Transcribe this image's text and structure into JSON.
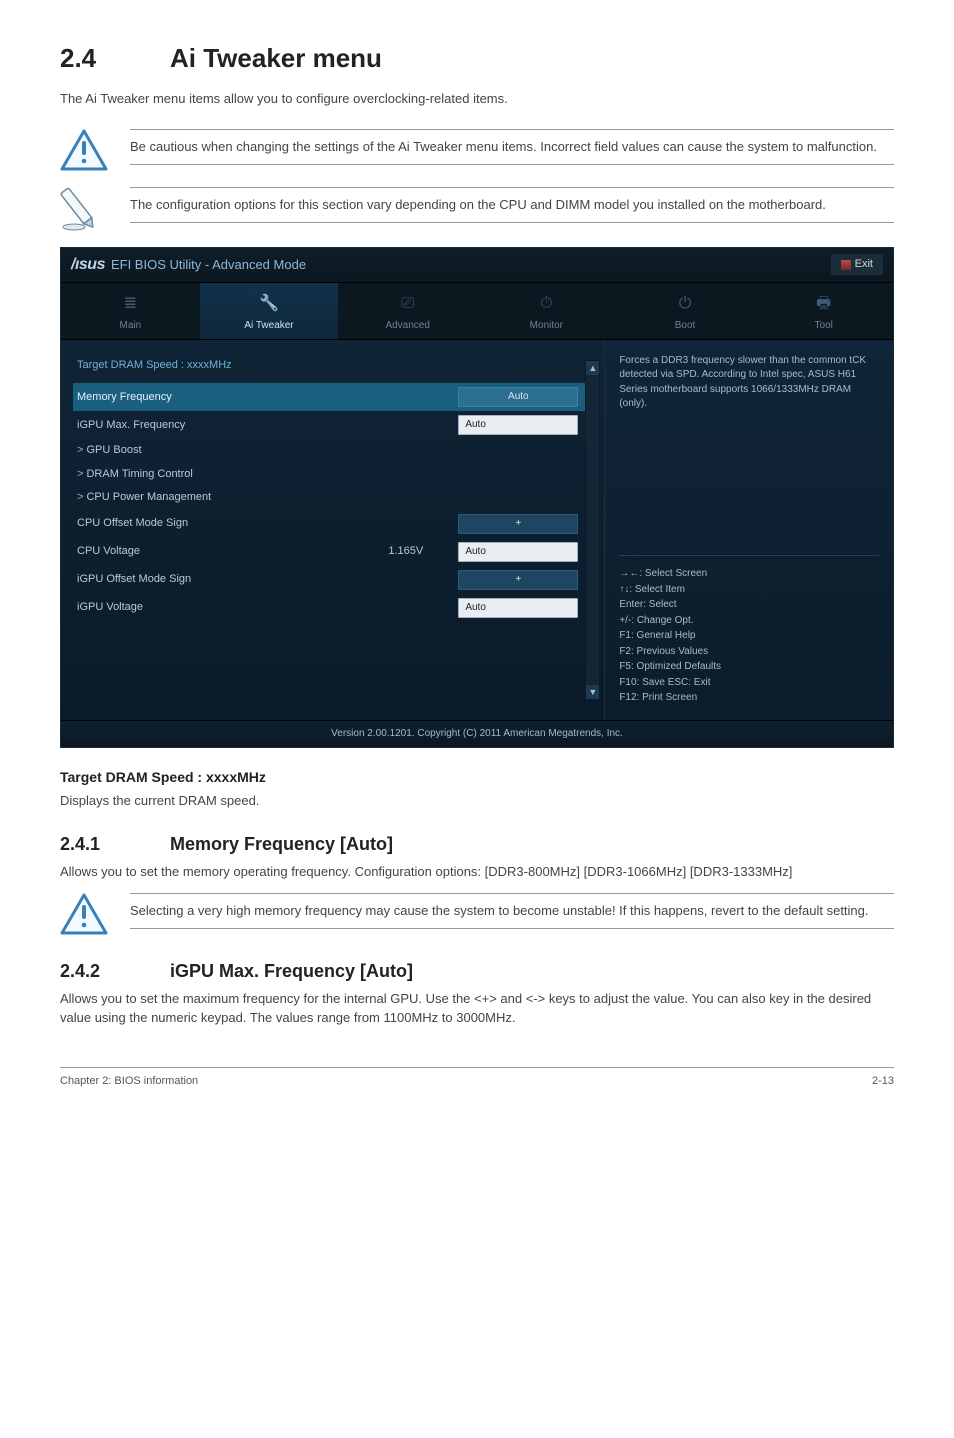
{
  "page": {
    "section_number": "2.4",
    "section_title": "Ai Tweaker menu",
    "intro": "The Ai Tweaker menu items allow you to configure overclocking-related items.",
    "caution1": "Be cautious when changing the settings of the Ai Tweaker menu items. Incorrect field values can cause the system to malfunction.",
    "note1": "The configuration options for this section vary depending on the CPU and DIMM model you installed on the motherboard.",
    "target_heading": "Target DRAM Speed : xxxxMHz",
    "target_body": "Displays the current DRAM speed.",
    "s241_num": "2.4.1",
    "s241_title": "Memory Frequency [Auto]",
    "s241_body": "Allows you to set the memory operating frequency. Configuration options: [DDR3-800MHz] [DDR3-1066MHz] [DDR3-1333MHz]",
    "caution2": "Selecting a very high memory frequency may cause the system to become unstable! If this happens, revert to the default setting.",
    "s242_num": "2.4.2",
    "s242_title": "iGPU Max. Frequency [Auto]",
    "s242_body": "Allows you to set the maximum frequency for the internal GPU. Use the <+> and <-> keys to adjust the value. You can also key in the desired value using the numeric keypad. The values range from 1100MHz to 3000MHz.",
    "footer_left": "Chapter 2: BIOS information",
    "footer_right": "2-13"
  },
  "bios": {
    "title_logo": "/ısus",
    "title_text": "EFI BIOS Utility - Advanced Mode",
    "exit_label": "Exit",
    "tabs": [
      {
        "label": "Main",
        "glyph": "≣"
      },
      {
        "label": "Ai Tweaker",
        "glyph": "🔧"
      },
      {
        "label": "Advanced",
        "glyph": "⎚"
      },
      {
        "label": "Monitor",
        "glyph": "⏱"
      },
      {
        "label": "Boot",
        "glyph": "⏻"
      },
      {
        "label": "Tool",
        "glyph": "🖶"
      }
    ],
    "active_tab": 1,
    "rows": [
      {
        "lbl": "Target DRAM Speed : xxxxMHz",
        "mid": "",
        "val": "",
        "field": null,
        "indent": false,
        "selected": false,
        "arrow": false,
        "color": "#6fb2d6"
      },
      {
        "lbl": "Memory Frequency",
        "mid": "",
        "val": "Auto",
        "field": "dark",
        "indent": false,
        "selected": true,
        "arrow": false
      },
      {
        "lbl": "iGPU Max. Frequency",
        "mid": "",
        "val": "Auto",
        "field": "white",
        "indent": false,
        "selected": false,
        "arrow": false
      },
      {
        "lbl": "GPU Boost",
        "mid": "",
        "val": "",
        "field": null,
        "indent": false,
        "selected": false,
        "arrow": true
      },
      {
        "lbl": "DRAM Timing Control",
        "mid": "",
        "val": "",
        "field": null,
        "indent": false,
        "selected": false,
        "arrow": true
      },
      {
        "lbl": "CPU Power Management",
        "mid": "",
        "val": "",
        "field": null,
        "indent": false,
        "selected": false,
        "arrow": true
      },
      {
        "lbl": "CPU Offset Mode Sign",
        "mid": "",
        "val": "+",
        "field": "dark",
        "indent": false,
        "selected": false,
        "arrow": false
      },
      {
        "lbl": "CPU Voltage",
        "mid": "1.165V",
        "val": "Auto",
        "field": "white",
        "indent": false,
        "selected": false,
        "arrow": false
      },
      {
        "lbl": "iGPU Offset Mode Sign",
        "mid": "",
        "val": "+",
        "field": "dark",
        "indent": false,
        "selected": false,
        "arrow": false
      },
      {
        "lbl": "iGPU Voltage",
        "mid": "",
        "val": "Auto",
        "field": "white",
        "indent": false,
        "selected": false,
        "arrow": false
      }
    ],
    "help_text": "Forces a DDR3 frequency slower than the common tCK detected via SPD. According to Intel spec, ASUS H61 Series motherboard supports 1066/1333MHz DRAM (only).",
    "hint_select_screen": "→←: Select Screen",
    "hint_select_item": "↑↓: Select Item",
    "hint_enter": "Enter: Select",
    "hint_change": "+/-: Change Opt.",
    "hint_f1": "F1: General Help",
    "hint_f2": "F2: Previous Values",
    "hint_f5": "F5: Optimized Defaults",
    "hint_f10": "F10: Save   ESC: Exit",
    "hint_f12": "F12: Print Screen",
    "footer": "Version 2.00.1201. Copyright (C) 2011 American Megatrends, Inc."
  },
  "colors": {
    "warning_stroke": "#3a7fb5",
    "warning_fill_top": "#e8f3fb",
    "note_stroke": "#6b8aa1"
  }
}
